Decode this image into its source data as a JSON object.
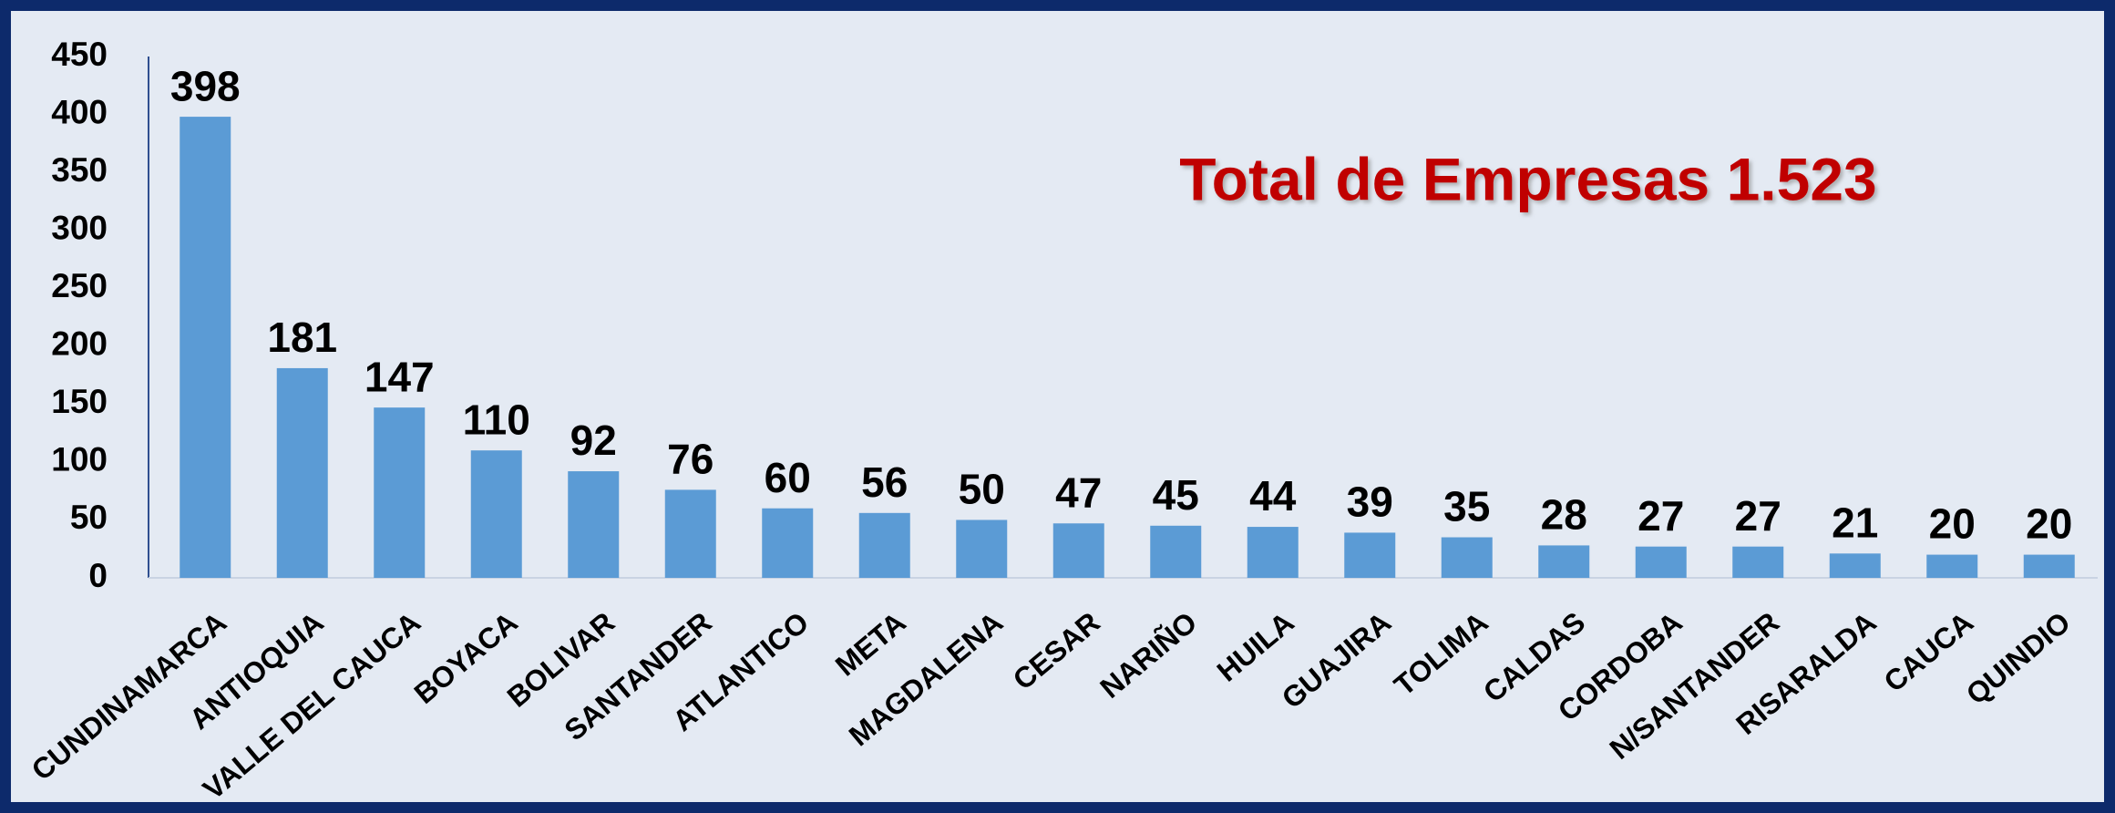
{
  "chart_data": {
    "type": "bar",
    "annotation": "Total de Empresas 1.523",
    "categories": [
      "CUNDINAMARCA",
      "ANTIOQUIA",
      "VALLE DEL CAUCA",
      "BOYACA",
      "BOLIVAR",
      "SANTANDER",
      "ATLANTICO",
      "META",
      "MAGDALENA",
      "CESAR",
      "NARIÑO",
      "HUILA",
      "GUAJIRA",
      "TOLIMA",
      "CALDAS",
      "CORDOBA",
      "N/SANTANDER",
      "RISARALDA",
      "CAUCA",
      "QUINDIO"
    ],
    "values": [
      398,
      181,
      147,
      110,
      92,
      76,
      60,
      56,
      50,
      47,
      45,
      44,
      39,
      35,
      28,
      27,
      27,
      21,
      20,
      20
    ],
    "color": "#5b9bd5",
    "ylim": [
      0,
      450
    ],
    "yticks": [
      0,
      50,
      100,
      150,
      200,
      250,
      300,
      350,
      400,
      450
    ],
    "grid": false
  }
}
